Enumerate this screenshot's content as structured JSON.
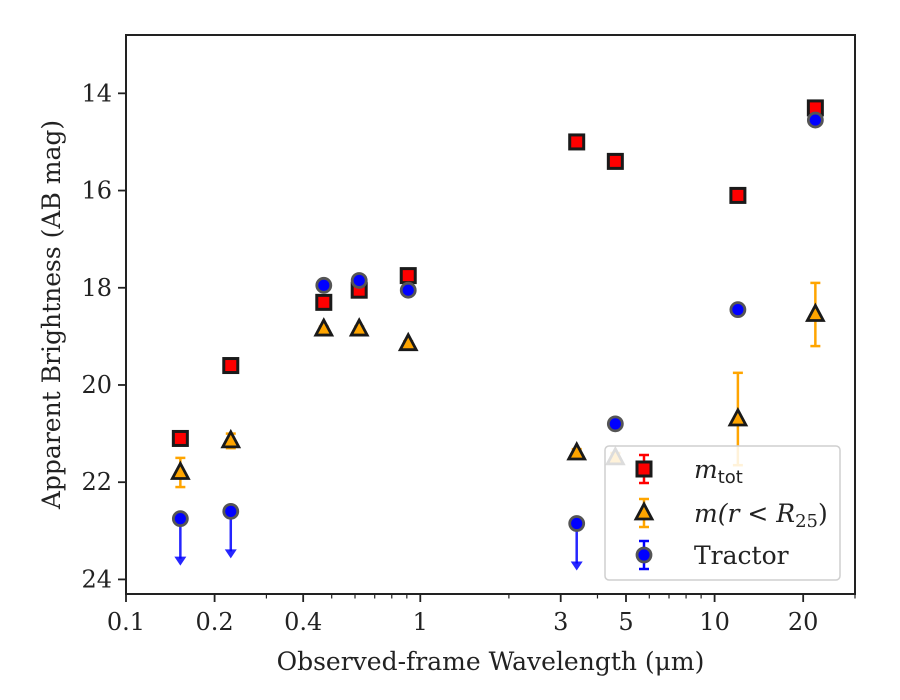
{
  "chart_data": {
    "type": "scatter",
    "xlabel": "Observed-frame Wavelength (μm)",
    "ylabel": "Apparent Brightness (AB mag)",
    "xscale": "log",
    "xlim": [
      0.1,
      30
    ],
    "ylim": [
      24.3,
      12.8
    ],
    "y_inverted": true,
    "x_ticks": [
      {
        "value": 0.1,
        "label": "0.1"
      },
      {
        "value": 0.2,
        "label": "0.2"
      },
      {
        "value": 0.4,
        "label": "0.4"
      },
      {
        "value": 1,
        "label": "1"
      },
      {
        "value": 3,
        "label": "3"
      },
      {
        "value": 5,
        "label": "5"
      },
      {
        "value": 10,
        "label": "10"
      },
      {
        "value": 20,
        "label": "20"
      }
    ],
    "y_ticks": [
      {
        "value": 14,
        "label": "14"
      },
      {
        "value": 16,
        "label": "16"
      },
      {
        "value": 18,
        "label": "18"
      },
      {
        "value": 20,
        "label": "20"
      },
      {
        "value": 22,
        "label": "22"
      },
      {
        "value": 24,
        "label": "24"
      }
    ],
    "grid": false,
    "legend_position": "lower-right",
    "series": [
      {
        "name": "m_tot",
        "legend_label": {
          "main": "m",
          "sub": "tot"
        },
        "marker": "square",
        "color": "#ff0000",
        "edge_color": "#1a1a1a",
        "errbar_color": "#ff0000",
        "points": [
          {
            "x": 0.153,
            "y": 21.1,
            "yerr": 0.08
          },
          {
            "x": 0.227,
            "y": 19.6,
            "yerr": 0.05
          },
          {
            "x": 0.47,
            "y": 18.3,
            "yerr": 0.05
          },
          {
            "x": 0.62,
            "y": 18.05,
            "yerr": 0.05
          },
          {
            "x": 0.91,
            "y": 17.75,
            "yerr": 0.05
          },
          {
            "x": 3.4,
            "y": 15.0,
            "yerr": 0.05
          },
          {
            "x": 4.6,
            "y": 15.4,
            "yerr": 0.05
          },
          {
            "x": 12.0,
            "y": 16.1,
            "yerr": 0.05
          },
          {
            "x": 22.0,
            "y": 14.3,
            "yerr": 0.05
          }
        ]
      },
      {
        "name": "m(r < R_25)",
        "legend_label": {
          "pre": "m(r < R",
          "sub": "25",
          "post": ")"
        },
        "marker": "triangle",
        "color": "#ffa500",
        "edge_color": "#1a1a1a",
        "errbar_color": "#ffa500",
        "points": [
          {
            "x": 0.153,
            "y": 21.8,
            "yerr": 0.3
          },
          {
            "x": 0.227,
            "y": 21.15,
            "yerr": 0.15
          },
          {
            "x": 0.47,
            "y": 18.85,
            "yerr": 0.05
          },
          {
            "x": 0.62,
            "y": 18.85,
            "yerr": 0.05
          },
          {
            "x": 0.91,
            "y": 19.15,
            "yerr": 0.05
          },
          {
            "x": 3.4,
            "y": 21.4,
            "yerr": 0.08
          },
          {
            "x": 4.6,
            "y": 21.5,
            "yerr": 0.1
          },
          {
            "x": 12.0,
            "y": 20.7,
            "yerr": 0.95
          },
          {
            "x": 22.0,
            "y": 18.55,
            "yerr": 0.65
          }
        ]
      },
      {
        "name": "Tractor",
        "legend_label": {
          "main": "Tractor"
        },
        "marker": "circle",
        "color": "#0000ff",
        "edge_color": "#555555",
        "errbar_color": "#0000ff",
        "points": [
          {
            "x": 0.153,
            "y": 22.75,
            "upper_limit": true
          },
          {
            "x": 0.227,
            "y": 22.6,
            "upper_limit": true
          },
          {
            "x": 0.47,
            "y": 17.95,
            "yerr": 0.05
          },
          {
            "x": 0.62,
            "y": 17.85,
            "yerr": 0.05
          },
          {
            "x": 0.91,
            "y": 18.05,
            "yerr": 0.05
          },
          {
            "x": 3.4,
            "y": 22.85,
            "upper_limit": true
          },
          {
            "x": 4.6,
            "y": 20.8,
            "yerr": 0.05
          },
          {
            "x": 12.0,
            "y": 18.45,
            "yerr": 0.05
          },
          {
            "x": 22.0,
            "y": 14.55,
            "yerr": 0.05
          }
        ]
      }
    ]
  }
}
